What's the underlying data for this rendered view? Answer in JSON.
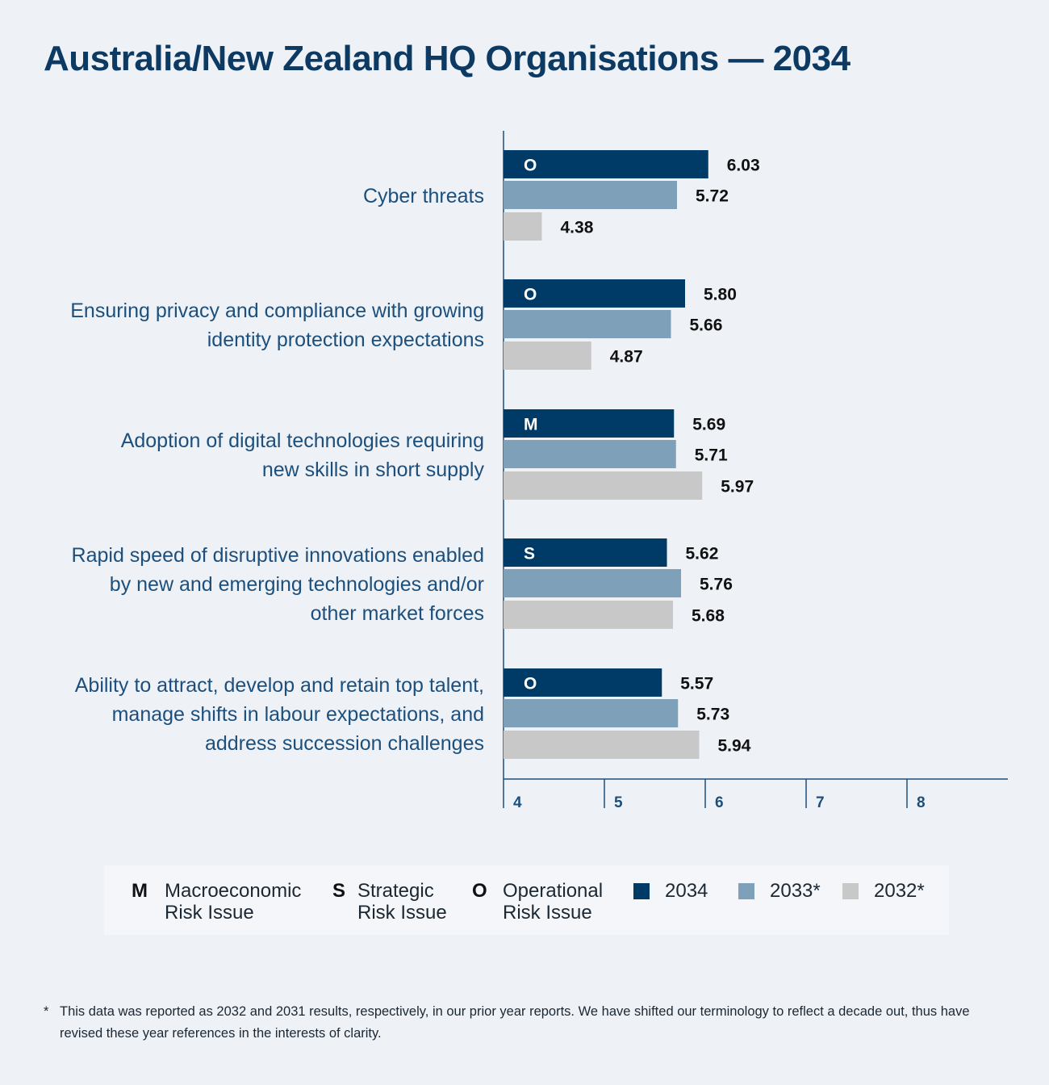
{
  "title": "Australia/New Zealand HQ Organisations — 2034",
  "chart_data": {
    "type": "bar",
    "orientation": "horizontal",
    "categories": [
      "Cyber threats",
      "Ensuring privacy and compliance with growing identity protection expectations",
      "Adoption of digital technologies requiring new skills in short supply",
      "Rapid speed of disruptive innovations enabled by new and emerging technologies and/or other market forces",
      "Ability to attract, develop and retain top talent, manage shifts in labour expectations, and address succession challenges"
    ],
    "category_label_lines": [
      [
        "Cyber threats"
      ],
      [
        "Ensuring privacy and compliance with growing",
        "identity protection expectations"
      ],
      [
        "Adoption of digital technologies requiring",
        "new skills in short supply"
      ],
      [
        "Rapid speed of disruptive innovations enabled",
        "by new and emerging technologies and/or",
        "other market forces"
      ],
      [
        "Ability to attract, develop and retain top talent,",
        "manage shifts in labour expectations, and",
        "address succession challenges"
      ]
    ],
    "risk_type": [
      "O",
      "O",
      "M",
      "S",
      "O"
    ],
    "series": [
      {
        "name": "2034",
        "color": "#003a66",
        "values": [
          6.03,
          5.8,
          5.69,
          5.62,
          5.57
        ]
      },
      {
        "name": "2033*",
        "color": "#7fa0b9",
        "values": [
          5.72,
          5.66,
          5.71,
          5.76,
          5.73
        ]
      },
      {
        "name": "2032*",
        "color": "#c8c8c8",
        "values": [
          4.38,
          4.87,
          5.97,
          5.68,
          5.94
        ]
      }
    ],
    "xlim": [
      4,
      9
    ],
    "xticks": [
      4,
      5,
      6,
      7,
      8
    ],
    "grid": false
  },
  "legend": {
    "risk_types": [
      {
        "letter": "M",
        "label": "Macroeconomic\nRisk Issue"
      },
      {
        "letter": "S",
        "label": "Strategic\nRisk Issue"
      },
      {
        "letter": "O",
        "label": "Operational\nRisk Issue"
      }
    ],
    "series": [
      {
        "label": "2034",
        "color": "#003a66"
      },
      {
        "label": "2033*",
        "color": "#7fa0b9"
      },
      {
        "label": "2032*",
        "color": "#c8c8c8"
      }
    ]
  },
  "footnote": {
    "marker": "*",
    "text": "This data was reported as 2032 and 2031 results, respectively, in our prior year reports. We have shifted our terminology to reflect a decade out, thus have revised these year references in the interests of clarity."
  }
}
